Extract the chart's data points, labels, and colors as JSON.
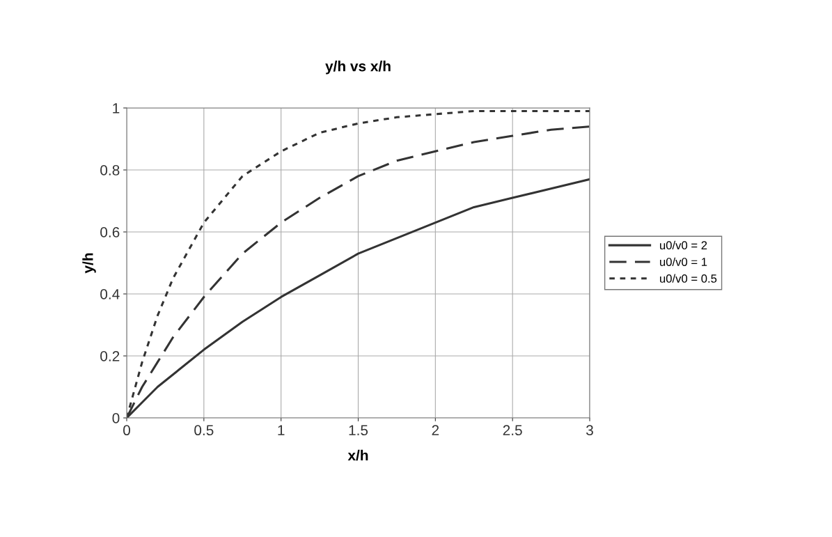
{
  "chart_data": {
    "type": "line",
    "title": "y/h vs x/h",
    "xlabel": "x/h",
    "ylabel": "y/h",
    "x": [
      0,
      0.1,
      0.2,
      0.3,
      0.5,
      0.75,
      1,
      1.25,
      1.5,
      1.75,
      2,
      2.25,
      2.5,
      2.75,
      3
    ],
    "series": [
      {
        "name": "u0/v0 = 2",
        "color": "#333333",
        "line_style": "solid",
        "values": [
          0,
          0.05,
          0.1,
          0.14,
          0.22,
          0.31,
          0.39,
          0.46,
          0.53,
          0.58,
          0.63,
          0.68,
          0.71,
          0.74,
          0.77
        ]
      },
      {
        "name": "u0/v0 = 1",
        "color": "#333333",
        "line_style": "dashed",
        "values": [
          0,
          0.1,
          0.18,
          0.26,
          0.39,
          0.53,
          0.63,
          0.71,
          0.78,
          0.83,
          0.86,
          0.89,
          0.91,
          0.93,
          0.94
        ]
      },
      {
        "name": "u0/v0 = 0.5",
        "color": "#333333",
        "line_style": "dotted",
        "values": [
          0,
          0.18,
          0.33,
          0.45,
          0.63,
          0.78,
          0.86,
          0.92,
          0.95,
          0.97,
          0.98,
          0.99,
          0.99,
          0.99,
          0.99
        ]
      }
    ],
    "xlim": [
      0,
      3
    ],
    "xticks": [
      0,
      0.5,
      1,
      1.5,
      2,
      2.5,
      3
    ],
    "ylim": [
      0,
      1
    ],
    "yticks": [
      0,
      0.2,
      0.4,
      0.6,
      0.8,
      1
    ],
    "grid": true,
    "legend": "right",
    "marker": "none"
  }
}
